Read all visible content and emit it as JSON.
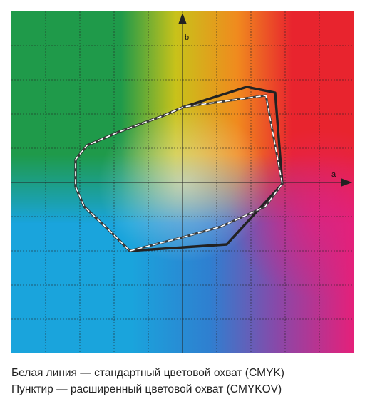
{
  "diagram": {
    "axis_b_label": "b",
    "axis_a_label": "a",
    "colors": {
      "green": "#1f9a4a",
      "orange": "#f08a1e",
      "red": "#e8242e",
      "magenta": "#e4207a",
      "cyan": "#1aa4dc",
      "blue": "#2f7fd0",
      "purple": "#8a48a8",
      "grid": "#222222",
      "standard_outline": "#222222",
      "extended_outline": "#ffffff"
    }
  },
  "caption": {
    "line1": "Белая линия — стандартный цветовой охват (CMYK)",
    "line2": "Пунктир — расширенный цветовой охват (CMYKOV)"
  }
}
